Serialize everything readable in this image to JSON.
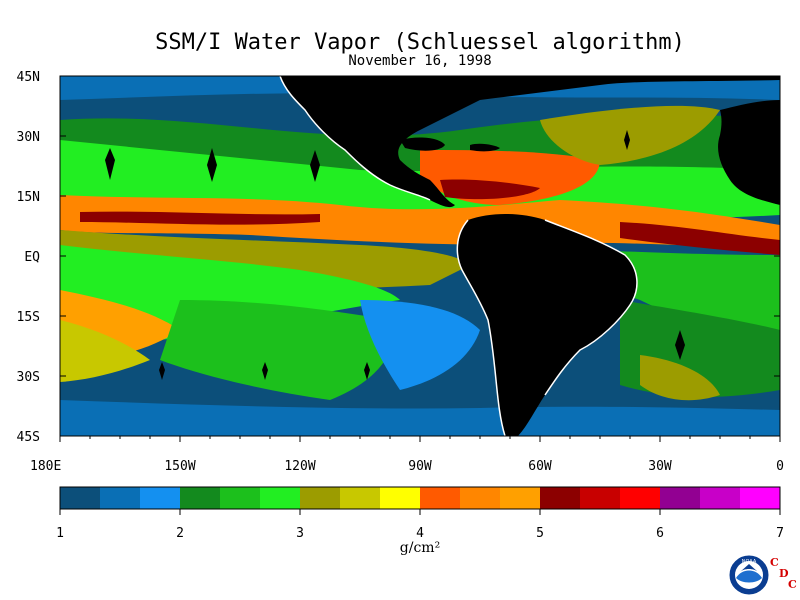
{
  "title": "SSM/I Water Vapor (Schluessel algorithm)",
  "date": "November 16, 1998",
  "latitude_labels": [
    "45N",
    "30N",
    "15N",
    "EQ",
    "15S",
    "30S",
    "45S"
  ],
  "longitude_labels": [
    "180E",
    "150W",
    "120W",
    "90W",
    "60W",
    "30W",
    "0"
  ],
  "colorbar": {
    "ticks": [
      "1",
      "2",
      "3",
      "4",
      "5",
      "6",
      "7"
    ],
    "units": "g/cm²",
    "colors": [
      "#0c4f7a",
      "#0a6fb5",
      "#1490f0",
      "#138a1e",
      "#1cc01c",
      "#22ee22",
      "#9c9c00",
      "#c8c800",
      "#ffff00",
      "#ff5a00",
      "#ff8600",
      "#ffa000",
      "#8c0000",
      "#c80000",
      "#ff0000",
      "#920092",
      "#c800c8",
      "#ff00ff"
    ]
  },
  "logo": {
    "name": "noaa-logo-icon",
    "text": "NOAA",
    "cdc_letters": [
      "C",
      "D",
      "C"
    ]
  },
  "land_color": "#000000",
  "missing_color": "#ffffff"
}
